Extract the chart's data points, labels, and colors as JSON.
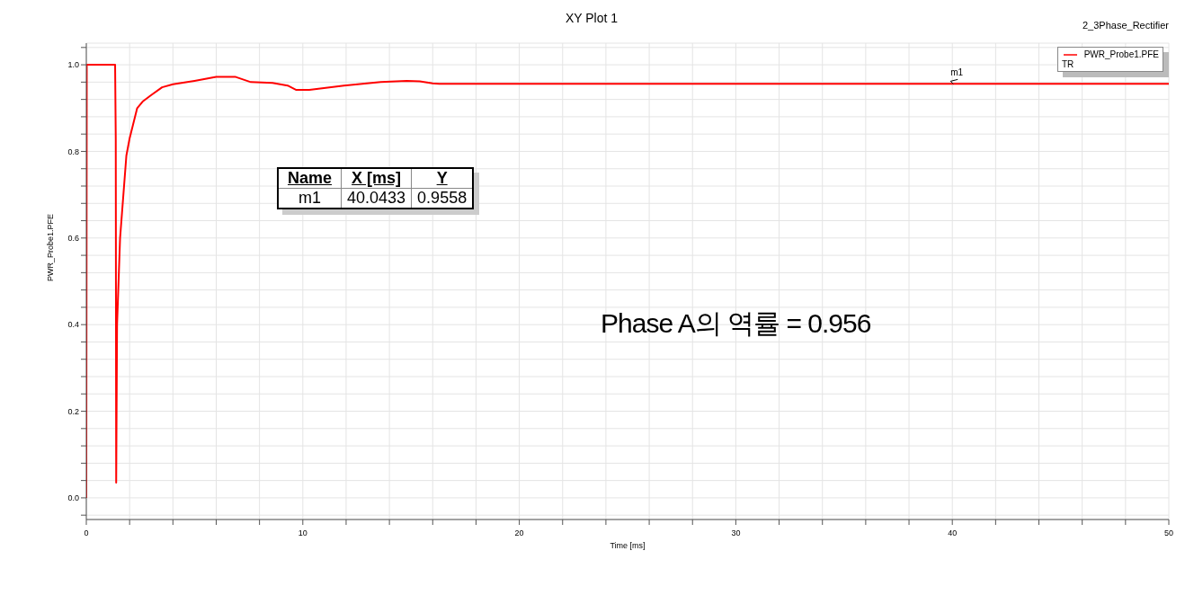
{
  "chart_data": {
    "type": "line",
    "title": "XY Plot 1",
    "xlabel": "Time [ms]",
    "ylabel": "PWR_Probe1.PFE",
    "legend_title": "TR",
    "annotations": [
      "2_3Phase_Rectifier",
      "Phase A의 역률 = 0.956",
      "Name",
      "X [ms]",
      "Y",
      "m1",
      "40.0433",
      "0.9558",
      {
        "text": "m1",
        "x": 40.0433,
        "y": 0.9558
      }
    ],
    "series": [
      {
        "name": "PWR_Probe1.PFE",
        "color": "#ff0000",
        "x": [
          0,
          0.02,
          1.33,
          1.36,
          1.38,
          1.42,
          1.56,
          1.85,
          2.0,
          2.35,
          2.6,
          3.0,
          3.5,
          4.0,
          5.0,
          6.0,
          6.9,
          7.6,
          8.6,
          9.3,
          9.7,
          10.3,
          11.9,
          13.6,
          14.8,
          15.4,
          16.0,
          16.3,
          50
        ],
        "values": [
          0,
          1.0,
          1.0,
          0.83,
          0.035,
          0.4,
          0.6,
          0.79,
          0.83,
          0.9,
          0.915,
          0.93,
          0.948,
          0.955,
          0.963,
          0.972,
          0.972,
          0.96,
          0.958,
          0.952,
          0.942,
          0.942,
          0.952,
          0.96,
          0.963,
          0.962,
          0.957,
          0.956,
          0.956
        ]
      }
    ],
    "xlim": [
      0,
      50
    ],
    "ylim": [
      -0.05,
      1.05
    ],
    "xticks": [
      0,
      {
        "value": 2,
        "label": null
      },
      {
        "value": 4,
        "label": null
      },
      {
        "value": 6,
        "label": null
      },
      {
        "value": 8,
        "label": null
      },
      10,
      {
        "value": 12,
        "label": null
      },
      {
        "value": 14,
        "label": null
      },
      {
        "value": 16,
        "label": null
      },
      {
        "value": 18,
        "label": null
      },
      20,
      {
        "value": 22,
        "label": null
      },
      {
        "value": 24,
        "label": null
      },
      {
        "value": 26,
        "label": null
      },
      {
        "value": 28,
        "label": null
      },
      30,
      {
        "value": 32,
        "label": null
      },
      {
        "value": 34,
        "label": null
      },
      {
        "value": 36,
        "label": null
      },
      {
        "value": 38,
        "label": null
      },
      40,
      {
        "value": 42,
        "label": null
      },
      {
        "value": 44,
        "label": null
      },
      {
        "value": 46,
        "label": null
      },
      {
        "value": 48,
        "label": null
      },
      50
    ],
    "yticks": [
      {
        "value": -0.04,
        "label": null
      },
      {
        "value": 0,
        "label": "0.0"
      },
      {
        "value": 0.04,
        "label": null
      },
      {
        "value": 0.08,
        "label": null
      },
      {
        "value": 0.12,
        "label": null
      },
      {
        "value": 0.16,
        "label": null
      },
      {
        "value": 0.2,
        "label": "0.2"
      },
      {
        "value": 0.24,
        "label": null
      },
      {
        "value": 0.28,
        "label": null
      },
      {
        "value": 0.32,
        "label": null
      },
      {
        "value": 0.36,
        "label": null
      },
      {
        "value": 0.4,
        "label": "0.4"
      },
      {
        "value": 0.44,
        "label": null
      },
      {
        "value": 0.48,
        "label": null
      },
      {
        "value": 0.52,
        "label": null
      },
      {
        "value": 0.56,
        "label": null
      },
      {
        "value": 0.6,
        "label": "0.6"
      },
      {
        "value": 0.64,
        "label": null
      },
      {
        "value": 0.68,
        "label": null
      },
      {
        "value": 0.72,
        "label": null
      },
      {
        "value": 0.76,
        "label": null
      },
      {
        "value": 0.8,
        "label": "0.8"
      },
      {
        "value": 0.84,
        "label": null
      },
      {
        "value": 0.88,
        "label": null
      },
      {
        "value": 0.92,
        "label": null
      },
      {
        "value": 0.96,
        "label": null
      },
      {
        "value": 1.0,
        "label": "1.0"
      },
      {
        "value": 1.04,
        "label": null
      }
    ],
    "grid": true,
    "legend": "top right",
    "marker": "none",
    "line_style": "solid"
  }
}
